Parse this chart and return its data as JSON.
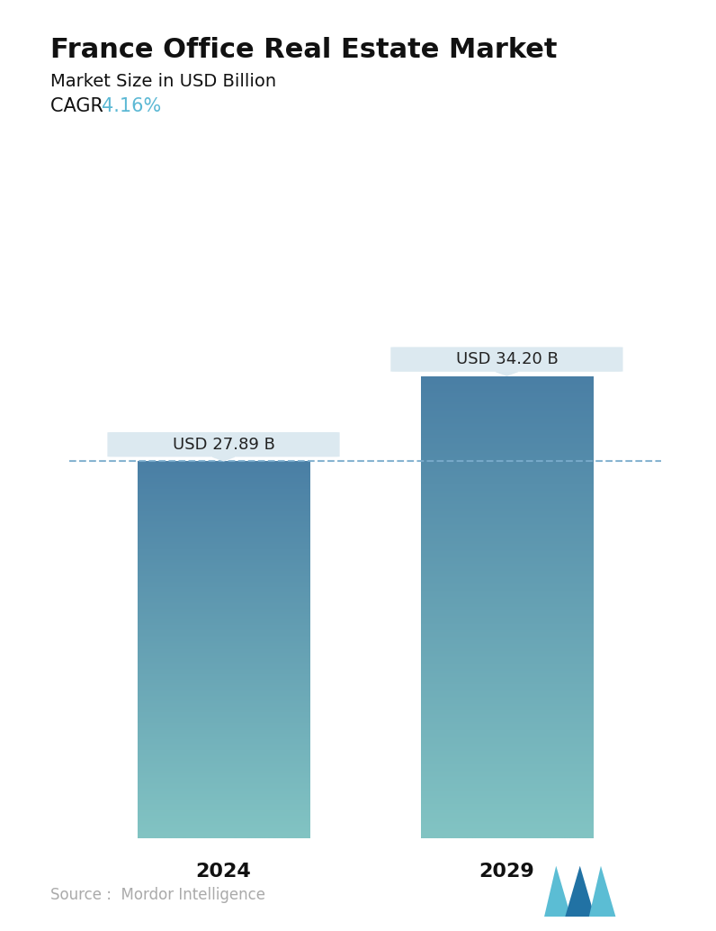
{
  "title": "France Office Real Estate Market",
  "subtitle": "Market Size in USD Billion",
  "cagr_label": "CAGR ",
  "cagr_value": "4.16%",
  "cagr_color": "#5BB8D4",
  "categories": [
    "2024",
    "2029"
  ],
  "values": [
    27.89,
    34.2
  ],
  "bar_labels": [
    "USD 27.89 B",
    "USD 34.20 B"
  ],
  "bar_top_color": "#4a7fa5",
  "bar_bottom_color": "#82c4c3",
  "dashed_line_color": "#7aaccc",
  "dashed_line_value": 27.89,
  "tooltip_bg_color": "#dce9f0",
  "source_text": "Source :  Mordor Intelligence",
  "source_color": "#aaaaaa",
  "background_color": "#ffffff",
  "ylim": [
    0,
    40
  ],
  "title_fontsize": 22,
  "subtitle_fontsize": 14,
  "cagr_fontsize": 15,
  "bar_label_fontsize": 13,
  "axis_label_fontsize": 16,
  "source_fontsize": 12,
  "bar_positions": [
    0.27,
    0.73
  ],
  "bar_width": 0.28
}
